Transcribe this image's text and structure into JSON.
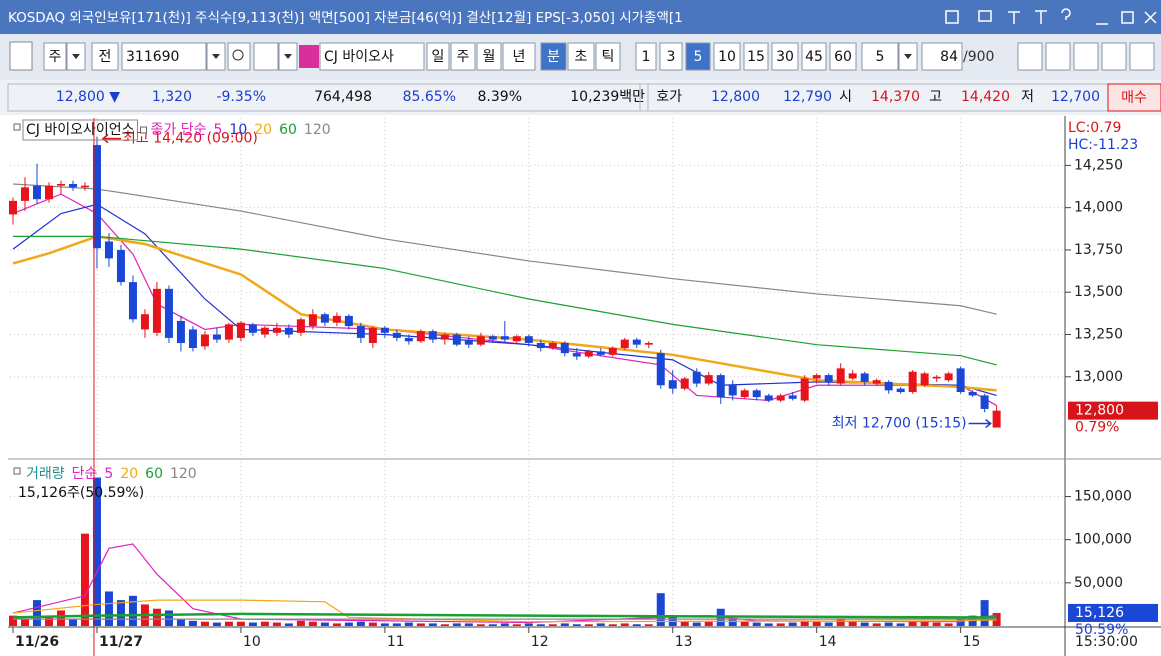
{
  "title_bar": {
    "text": "KOSDAQ 외국인보유[171(천)] 주식수[9,113(천)] 액면[500] 자본금[46(억)] 결산[12월] EPS[-3,050] 시가총액[1"
  },
  "toolbar": {
    "market": "주",
    "type": "전",
    "code": "311690",
    "name": "CJ 바이오사",
    "periods": [
      "일",
      "주",
      "월",
      "년",
      "분",
      "초",
      "틱"
    ],
    "selected_period": "분",
    "intervals": [
      "1",
      "3",
      "5",
      "10",
      "15",
      "30",
      "45",
      "60"
    ],
    "selected_interval": "5",
    "count_select": "5",
    "bars": "84",
    "max_bars": "/900"
  },
  "quote": {
    "items": [
      {
        "text": "12,800 ▼",
        "color": "#1a3fd0"
      },
      {
        "text": "1,320",
        "color": "#1a3fd0"
      },
      {
        "text": "-9.35%",
        "color": "#1a3fd0"
      },
      {
        "text": "764,498",
        "color": "#111111"
      },
      {
        "text": "85.65%",
        "color": "#1a3fd0"
      },
      {
        "text": "8.39%",
        "color": "#111111"
      },
      {
        "text": "10,239백만",
        "color": "#111111"
      },
      {
        "text": "호가",
        "color": "#111111"
      },
      {
        "text": "12,800",
        "color": "#1a3fd0"
      },
      {
        "text": "12,790",
        "color": "#1a3fd0"
      },
      {
        "text": "시",
        "color": "#111111"
      },
      {
        "text": "14,370",
        "color": "#d8141b"
      },
      {
        "text": "고",
        "color": "#111111"
      },
      {
        "text": "14,420",
        "color": "#d8141b"
      },
      {
        "text": "저",
        "color": "#111111"
      },
      {
        "text": "12,700",
        "color": "#1a3fd0"
      }
    ],
    "action": "매수"
  },
  "chart_data": [
    {
      "type": "candlestick",
      "title": "CJ 바이오사이언스",
      "legend_label": "종가 단순",
      "up_color": "#e8141b",
      "down_color": "#1a47d6",
      "grid": true,
      "xlim": [
        -0.25,
        87.7
      ],
      "ylim": [
        12520,
        14530
      ],
      "yticks": [
        {
          "value": 14250,
          "label": "14,250"
        },
        {
          "value": 14000,
          "label": "14,000"
        },
        {
          "value": 13750,
          "label": "13,750"
        },
        {
          "value": 13500,
          "label": "13,500"
        },
        {
          "value": 13250,
          "label": "13,250"
        },
        {
          "value": 13000,
          "label": "13,000"
        }
      ],
      "open": [
        13960,
        14040,
        14130,
        14050,
        14130,
        14140,
        14120,
        14370,
        13800,
        13750,
        13560,
        13280,
        13260,
        13520,
        13330,
        13280,
        13180,
        13250,
        13220,
        13230,
        13310,
        13250,
        13260,
        13290,
        13260,
        13300,
        13370,
        13320,
        13360,
        13300,
        13200,
        13290,
        13260,
        13230,
        13210,
        13270,
        13220,
        13250,
        13220,
        13190,
        13240,
        13240,
        13210,
        13240,
        13200,
        13170,
        13200,
        13140,
        13120,
        13150,
        13130,
        13170,
        13220,
        13190,
        13140,
        12980,
        12930,
        13030,
        12960,
        13010,
        12950,
        12880,
        12920,
        12890,
        12860,
        12890,
        12860,
        12990,
        13010,
        12960,
        12990,
        13020,
        12960,
        12970,
        12930,
        12910,
        12950,
        12990,
        12980,
        13050,
        12910,
        12890,
        12700
      ],
      "high": [
        14060,
        14180,
        14260,
        14150,
        14160,
        14160,
        14150,
        14420,
        13850,
        13780,
        13600,
        13400,
        13560,
        13540,
        13360,
        13300,
        13270,
        13290,
        13320,
        13330,
        13320,
        13300,
        13320,
        13310,
        13350,
        13400,
        13380,
        13380,
        13370,
        13320,
        13300,
        13300,
        13280,
        13250,
        13280,
        13280,
        13260,
        13260,
        13240,
        13260,
        13250,
        13330,
        13250,
        13250,
        13220,
        13210,
        13210,
        13170,
        13160,
        13170,
        13180,
        13230,
        13230,
        13210,
        13160,
        13040,
        13000,
        13050,
        13030,
        13020,
        12980,
        12930,
        12930,
        12900,
        12900,
        12910,
        13010,
        13020,
        13020,
        13080,
        13040,
        13030,
        12990,
        12980,
        12940,
        13040,
        13030,
        13010,
        13030,
        13060,
        12920,
        12900,
        12830
      ],
      "low": [
        13900,
        13980,
        14020,
        14030,
        14080,
        14100,
        14100,
        13640,
        13650,
        13540,
        13320,
        13230,
        13240,
        13200,
        13150,
        13150,
        13160,
        13200,
        13200,
        13210,
        13240,
        13230,
        13240,
        13230,
        13240,
        13280,
        13300,
        13300,
        13280,
        13200,
        13170,
        13230,
        13210,
        13190,
        13200,
        13200,
        13190,
        13180,
        13170,
        13180,
        13200,
        13200,
        13200,
        13180,
        13150,
        13160,
        13120,
        13100,
        13110,
        13120,
        13120,
        13160,
        13170,
        13170,
        12930,
        12900,
        12920,
        12940,
        12950,
        12840,
        12860,
        12870,
        12860,
        12850,
        12850,
        12860,
        12850,
        12960,
        12950,
        12950,
        12980,
        12950,
        12950,
        12900,
        12900,
        12900,
        12940,
        12970,
        12970,
        12900,
        12880,
        12790,
        12700
      ],
      "close": [
        14040,
        14120,
        14050,
        14130,
        14140,
        14120,
        14130,
        13760,
        13700,
        13560,
        13340,
        13370,
        13520,
        13230,
        13200,
        13170,
        13250,
        13220,
        13310,
        13320,
        13260,
        13290,
        13290,
        13250,
        13340,
        13370,
        13320,
        13360,
        13300,
        13230,
        13290,
        13260,
        13230,
        13210,
        13270,
        13220,
        13250,
        13190,
        13190,
        13240,
        13220,
        13220,
        13240,
        13200,
        13170,
        13200,
        13140,
        13120,
        13150,
        13130,
        13170,
        13220,
        13190,
        13200,
        12950,
        12930,
        12990,
        12960,
        13010,
        12880,
        12890,
        12920,
        12880,
        12860,
        12890,
        12870,
        12990,
        13010,
        12970,
        13050,
        13020,
        12970,
        12980,
        12920,
        12910,
        13030,
        13020,
        13000,
        13020,
        12910,
        12890,
        12810,
        12800
      ],
      "series": [
        {
          "name": "5",
          "color": "#e020c0",
          "x": [
            0,
            4,
            7,
            10,
            12,
            16,
            19,
            31,
            43,
            54,
            57,
            63,
            67,
            79,
            82
          ],
          "values": [
            13965,
            14080,
            13965,
            13725,
            13430,
            13280,
            13310,
            13280,
            13190,
            13070,
            12890,
            12860,
            12950,
            12950,
            12830
          ]
        },
        {
          "name": "10",
          "color": "#2030d0",
          "x": [
            0,
            4,
            7,
            11,
            16,
            19,
            31,
            43,
            55,
            59,
            67,
            79,
            82
          ],
          "values": [
            13755,
            13965,
            14020,
            13845,
            13460,
            13280,
            13250,
            13190,
            13100,
            12950,
            12970,
            12950,
            12890
          ]
        },
        {
          "name": "20",
          "color": "#f0a818",
          "x": [
            0,
            3,
            7,
            11,
            19,
            24,
            31,
            43,
            55,
            63,
            67,
            79,
            82
          ],
          "values": [
            13670,
            13730,
            13830,
            13785,
            13605,
            13370,
            13280,
            13220,
            13130,
            13030,
            12980,
            12940,
            12920
          ]
        },
        {
          "name": "60",
          "color": "#1aa030",
          "x": [
            0,
            7,
            19,
            31,
            43,
            55,
            67,
            79,
            82
          ],
          "values": [
            13830,
            13830,
            13755,
            13640,
            13460,
            13310,
            13190,
            13125,
            13070
          ]
        },
        {
          "name": "120",
          "color": "#888888",
          "x": [
            0,
            7,
            19,
            31,
            43,
            55,
            67,
            79,
            82
          ],
          "values": [
            14140,
            14110,
            13980,
            13815,
            13685,
            13580,
            13490,
            13420,
            13370
          ]
        }
      ],
      "annotations": [
        {
          "text": "최고 14,420 (09:00)",
          "x": 7,
          "y": 14420,
          "color": "#d8141b"
        },
        {
          "text": "최저 12,700 (15:15)",
          "x": 82,
          "y": 12700,
          "color": "#1a3fd0"
        }
      ],
      "indicators": [
        {
          "text": "LC:0.79",
          "color": "#d8141b"
        },
        {
          "text": "HC:-11.23",
          "color": "#1a3fd0"
        }
      ],
      "last_value": {
        "value": 12800,
        "label": "12,800"
      },
      "last_change": "0.79%"
    },
    {
      "type": "bar",
      "title": "거래량",
      "legend_label": "단순",
      "grid": true,
      "xlim": [
        -0.25,
        87.7
      ],
      "ylim": [
        0,
        190000
      ],
      "yticks": [
        {
          "value": 50000,
          "label": "50,000"
        },
        {
          "value": 100000,
          "label": "100,000"
        },
        {
          "value": 150000,
          "label": "150,000"
        }
      ],
      "values": [
        12000,
        8000,
        30000,
        12000,
        18000,
        8000,
        107000,
        172000,
        40000,
        30000,
        35000,
        25000,
        20000,
        18000,
        8000,
        6000,
        5000,
        4000,
        5000,
        5000,
        4000,
        5000,
        4000,
        3000,
        6000,
        5000,
        4000,
        3000,
        4000,
        5000,
        4000,
        3000,
        3000,
        4000,
        3000,
        3000,
        2000,
        3000,
        3000,
        2000,
        2000,
        3000,
        2000,
        3000,
        2000,
        2000,
        3000,
        2000,
        2000,
        3000,
        2000,
        3000,
        2000,
        2000,
        38000,
        12000,
        5000,
        4000,
        6000,
        20000,
        8000,
        5000,
        4000,
        3000,
        3000,
        4000,
        6000,
        5000,
        4000,
        8000,
        5000,
        4000,
        3000,
        4000,
        3000,
        6000,
        5000,
        4000,
        3000,
        8000,
        12000,
        30000,
        15126
      ],
      "series": [
        {
          "name": "5",
          "color": "#e020c0",
          "x": [
            0,
            6,
            8,
            10,
            12,
            15,
            19,
            43,
            54,
            58,
            62,
            79,
            82
          ],
          "values": [
            15000,
            35000,
            90000,
            95000,
            60000,
            20000,
            8000,
            4000,
            10000,
            12000,
            6000,
            5000,
            13000
          ]
        },
        {
          "name": "20",
          "color": "#f0a818",
          "x": [
            0,
            7,
            12,
            19,
            26,
            28,
            43,
            79,
            82
          ],
          "values": [
            15000,
            25000,
            30000,
            30000,
            28000,
            10000,
            5000,
            6000,
            7000
          ]
        },
        {
          "name": "60",
          "color": "#1aa030",
          "x": [
            0,
            7,
            19,
            43,
            79,
            82
          ],
          "values": [
            10000,
            12000,
            14000,
            12000,
            10000,
            10000
          ]
        },
        {
          "name": "120",
          "color": "#888888",
          "x": [
            0,
            43,
            82
          ],
          "values": [
            8000,
            8000,
            8000
          ]
        }
      ],
      "info": "15,126주(50.59%)",
      "last_value": {
        "value": 15126,
        "label": "15,126"
      },
      "last_change": "50.59%",
      "xticks": [
        {
          "value": 0,
          "label": "11/26"
        },
        {
          "value": 7,
          "label": "11/27"
        },
        {
          "value": 19,
          "label": "10"
        },
        {
          "value": 31,
          "label": "11"
        },
        {
          "value": 43,
          "label": "12"
        },
        {
          "value": 55,
          "label": "13"
        },
        {
          "value": 67,
          "label": "14"
        },
        {
          "value": 79,
          "label": "15"
        }
      ],
      "time_label": "15:30:00"
    }
  ]
}
